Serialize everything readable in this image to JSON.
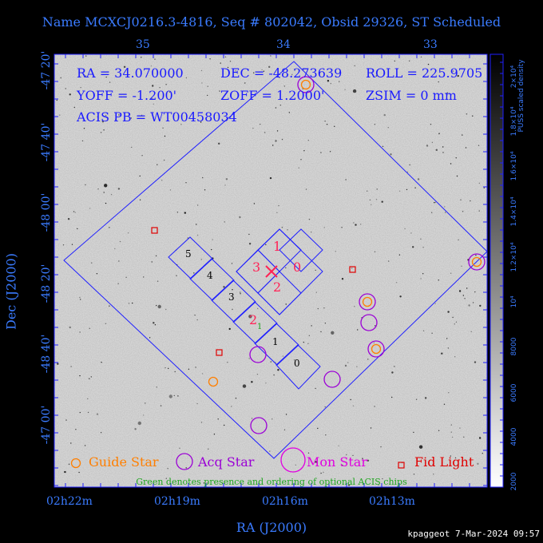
{
  "title": "Name MCXCJ0216.3-4816, Seq # 802042, Obsid 29326, ST Scheduled",
  "info": {
    "ra": "RA = 34.070000",
    "dec": "DEC = -48.273639",
    "roll": "ROLL = 225.9705",
    "yoff": "YOFF = -1.200'",
    "zoff": "ZOFF = 1.2000'",
    "zsim": "ZSIM = 0 mm",
    "acis_pb": "ACIS PB = WT00458034"
  },
  "axes": {
    "x_label": "RA (J2000)",
    "y_label": "Dec (J2000)",
    "x_bottom_ticks": [
      "02h22m",
      "02h19m",
      "02h16m",
      "02h13m"
    ],
    "x_top_ticks": [
      "35",
      "34",
      "33"
    ],
    "y_ticks": [
      "-47 20'",
      "-47 40'",
      "-48 00'",
      "-48 20'",
      "-48 40'",
      "-47 00'"
    ]
  },
  "chips": {
    "acis_s": [
      "5",
      "4",
      "3",
      "2",
      "1",
      "0"
    ],
    "acis_i": [
      "1",
      "3",
      "0",
      "2"
    ],
    "optional_marker": "1"
  },
  "legend": {
    "guide": "Guide Star",
    "acq": "Acq Star",
    "mon": "Mon Star",
    "fid": "Fid Light",
    "note": "Green denotes presence and ordering of optional ACIS chips"
  },
  "colorbar": {
    "label": "PUSS scaled density",
    "ticks": [
      "2000",
      "4000",
      "6000",
      "8000",
      "10⁴",
      "1.2×10⁴",
      "1.4×10⁴",
      "1.6×10⁴",
      "1.8×10⁴",
      "2×10⁴"
    ]
  },
  "credit": "kpaggeot  7-Mar-2024 09:57",
  "colors": {
    "axis_text": "#3a7bff",
    "outline": "#2020ff",
    "chip_label": "#ff2255",
    "guide": "#ff7f00",
    "acq": "#9b00d6",
    "mon": "#e000e0",
    "fid": "#e00000",
    "optional": "#1ea51e"
  }
}
